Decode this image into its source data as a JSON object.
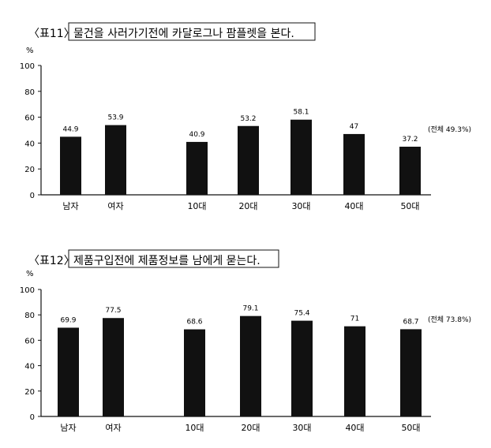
{
  "chart_data": [
    {
      "type": "bar",
      "title_label": "〈표11〉",
      "title": "물건을 사러가기전에 카달로그나 팜플렛을 본다.",
      "ylabel": "%",
      "ylim": [
        0,
        100
      ],
      "yticks": [
        "0",
        "20",
        "40",
        "60",
        "80",
        "100"
      ],
      "categories": [
        "남자",
        "여자",
        "10대",
        "20대",
        "30대",
        "40대",
        "50대"
      ],
      "values": [
        44.9,
        53.9,
        40.9,
        53.2,
        58.1,
        47,
        37.2
      ],
      "value_labels": [
        "44.9",
        "53.9",
        "40.9",
        "53.2",
        "58.1",
        "47",
        "37.2"
      ],
      "annotation": "(전체 49.3%)",
      "bar_color": "#111111"
    },
    {
      "type": "bar",
      "title_label": "〈표12〉",
      "title": "제품구입전에 제품정보를 남에게 묻는다.",
      "ylabel": "%",
      "ylim": [
        0,
        100
      ],
      "yticks": [
        "0",
        "20",
        "40",
        "60",
        "80",
        "100"
      ],
      "categories": [
        "남자",
        "여자",
        "10대",
        "20대",
        "30대",
        "40대",
        "50대"
      ],
      "values": [
        69.9,
        77.5,
        68.6,
        79.1,
        75.4,
        71,
        68.7
      ],
      "value_labels": [
        "69.9",
        "77.5",
        "68.6",
        "79.1",
        "75.4",
        "71",
        "68.7"
      ],
      "annotation": "(전체 73.8%)",
      "bar_color": "#111111"
    }
  ]
}
